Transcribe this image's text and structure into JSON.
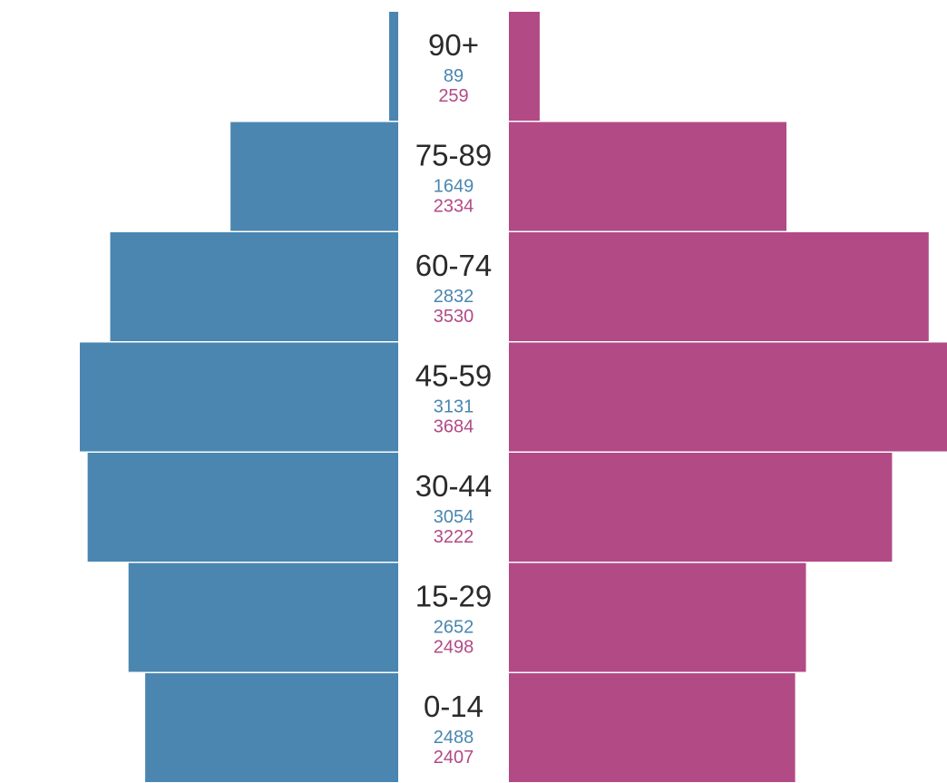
{
  "chart_data": {
    "type": "bar",
    "orientation": "horizontal",
    "layout": "population-pyramid",
    "categories": [
      "90+",
      "75-89",
      "60-74",
      "45-59",
      "30-44",
      "15-29",
      "0-14"
    ],
    "series": [
      {
        "side": "left",
        "color": "#4a86b0",
        "values": [
          89,
          1649,
          2832,
          3131,
          3054,
          2652,
          2488
        ]
      },
      {
        "side": "right",
        "color": "#b24a86",
        "values": [
          259,
          2334,
          3530,
          3684,
          3222,
          2498,
          2407
        ]
      }
    ],
    "category_label_color": "#2a2a2a",
    "xlim": [
      0,
      3684
    ],
    "grid": false,
    "legend": "none"
  }
}
